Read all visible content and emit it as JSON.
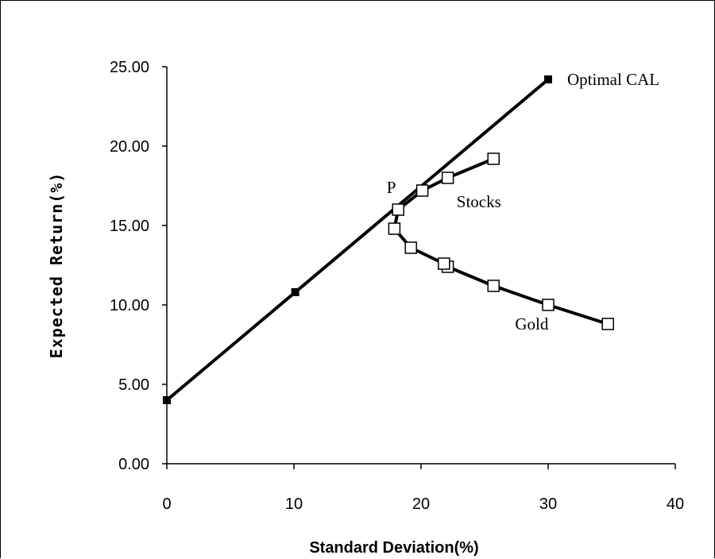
{
  "chart_data": {
    "type": "line",
    "xlabel": "Standard Deviation(%)",
    "ylabel": "Expected Return(%)",
    "xlim": [
      0,
      40
    ],
    "ylim": [
      0,
      25
    ],
    "x_ticks": [
      "0",
      "10",
      "20",
      "30",
      "40"
    ],
    "y_ticks": [
      "0.00",
      "5.00",
      "10.00",
      "15.00",
      "20.00",
      "25.00"
    ],
    "grid": false,
    "series": [
      {
        "name": "Optimal CAL",
        "marker": "filled-square",
        "points": [
          [
            0,
            4.0
          ],
          [
            10.1,
            10.8
          ],
          [
            30.0,
            24.2
          ]
        ]
      },
      {
        "name": "",
        "marker": "open-square",
        "points": [
          [
            34.7,
            8.8
          ],
          [
            30.0,
            10.0
          ],
          [
            25.7,
            11.2
          ],
          [
            22.1,
            12.4
          ],
          [
            21.8,
            12.6
          ],
          [
            19.2,
            13.6
          ],
          [
            17.9,
            14.8
          ],
          [
            18.2,
            16.0
          ],
          [
            20.1,
            17.2
          ],
          [
            22.1,
            18.0
          ],
          [
            25.7,
            19.2
          ]
        ]
      }
    ],
    "annotations": [
      {
        "text": "Optimal CAL",
        "x": 31.5,
        "y": 24.2
      },
      {
        "text": "Stocks",
        "x": 22.8,
        "y": 16.5
      },
      {
        "text": "Gold",
        "x": 27.4,
        "y": 8.8
      },
      {
        "text": "P",
        "x": 17.3,
        "y": 17.4
      }
    ]
  }
}
